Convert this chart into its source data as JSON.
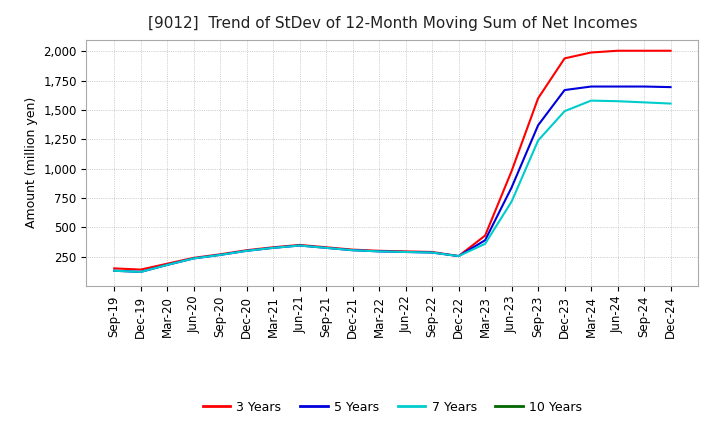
{
  "title": "[9012]  Trend of StDev of 12-Month Moving Sum of Net Incomes",
  "ylabel": "Amount (million yen)",
  "title_fontsize": 11,
  "label_fontsize": 9,
  "tick_fontsize": 8.5,
  "background_color": "#ffffff",
  "grid_color": "#aaaaaa",
  "legend_labels": [
    "3 Years",
    "5 Years",
    "7 Years",
    "10 Years"
  ],
  "legend_colors": [
    "#ff0000",
    "#0000dd",
    "#00cccc",
    "#006600"
  ],
  "ylim": [
    0,
    2100
  ],
  "yticks": [
    250,
    500,
    750,
    1000,
    1250,
    1500,
    1750,
    2000
  ],
  "x_labels": [
    "Sep-19",
    "Dec-19",
    "Mar-20",
    "Jun-20",
    "Sep-20",
    "Dec-20",
    "Mar-21",
    "Jun-21",
    "Sep-21",
    "Dec-21",
    "Mar-22",
    "Jun-22",
    "Sep-22",
    "Dec-22",
    "Mar-23",
    "Jun-23",
    "Sep-23",
    "Dec-23",
    "Mar-24",
    "Jun-24",
    "Sep-24",
    "Dec-24"
  ],
  "series_3y": [
    150,
    140,
    190,
    240,
    270,
    305,
    330,
    350,
    330,
    310,
    300,
    295,
    290,
    255,
    430,
    980,
    1600,
    1940,
    1990,
    2005,
    2005,
    2005
  ],
  "series_5y": [
    130,
    120,
    180,
    235,
    265,
    300,
    325,
    345,
    325,
    305,
    295,
    290,
    285,
    255,
    390,
    840,
    1370,
    1670,
    1700,
    1700,
    1700,
    1695
  ],
  "series_7y": [
    130,
    120,
    180,
    235,
    265,
    300,
    325,
    345,
    325,
    305,
    295,
    290,
    285,
    255,
    360,
    720,
    1240,
    1490,
    1580,
    1575,
    1565,
    1555
  ],
  "series_10y": [
    null,
    null,
    null,
    null,
    null,
    null,
    null,
    null,
    null,
    null,
    null,
    null,
    null,
    null,
    null,
    null,
    null,
    null,
    null,
    null,
    null,
    null
  ]
}
